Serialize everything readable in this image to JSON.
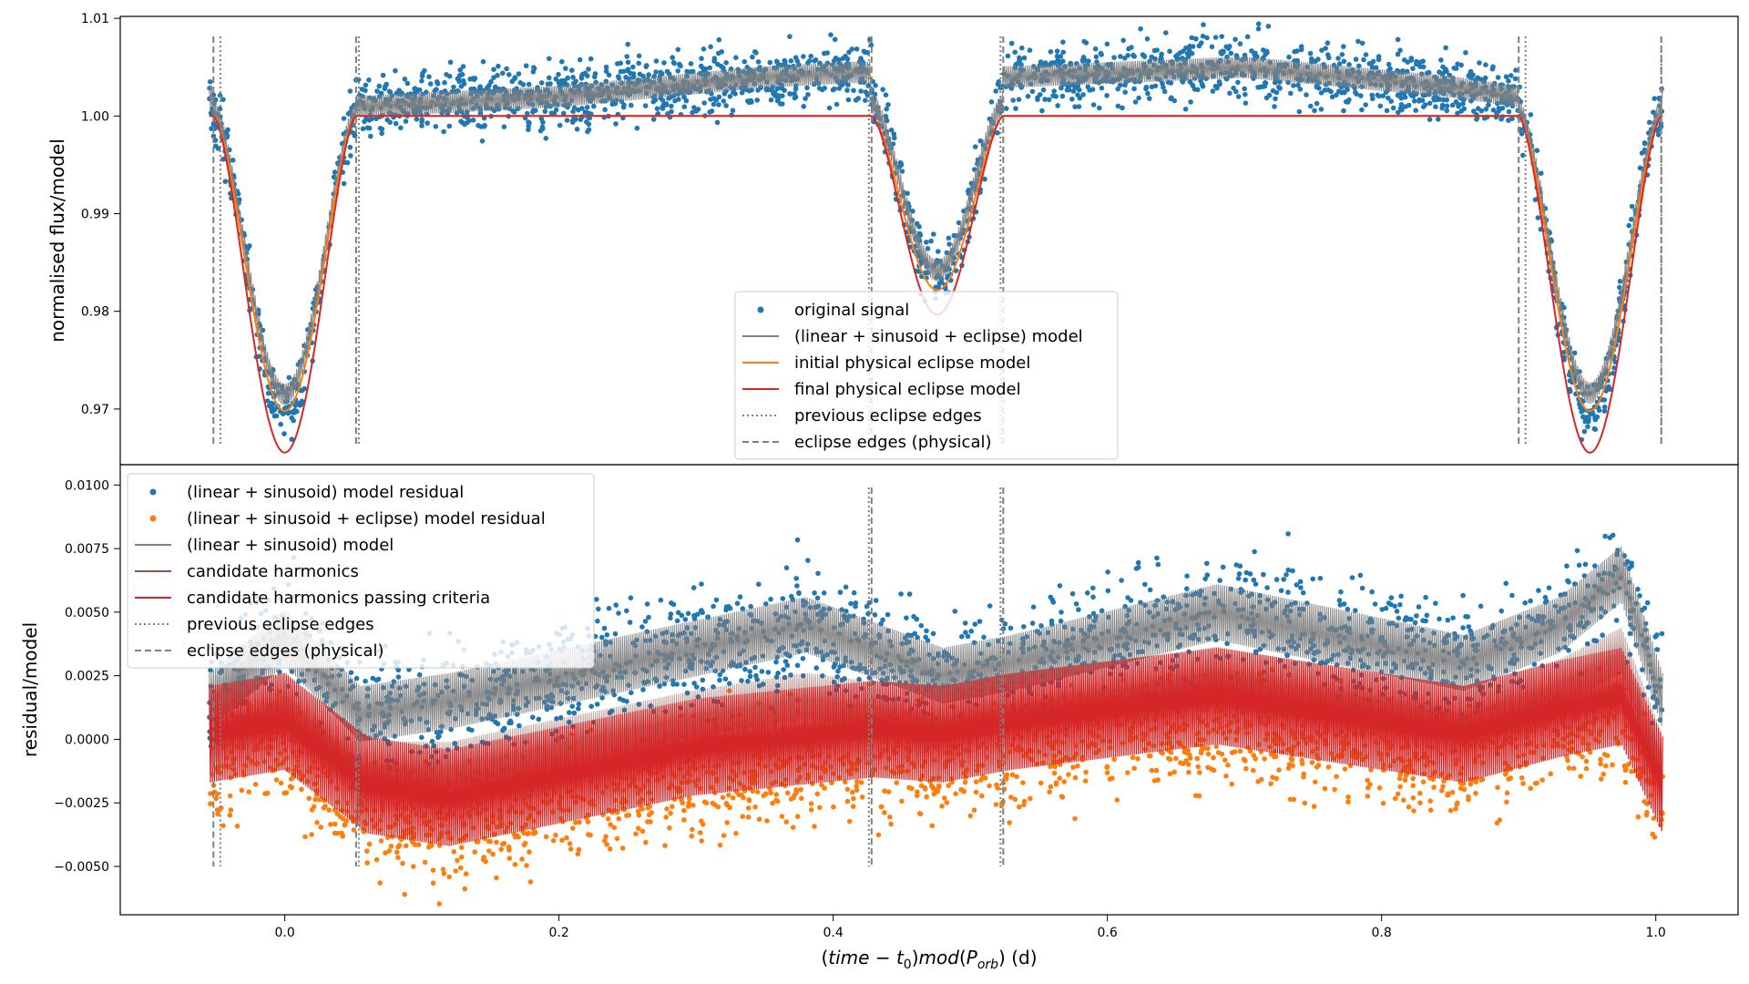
{
  "chart_data": [
    {
      "type": "scatter",
      "panel": "top",
      "xlim": [
        -0.12,
        1.06
      ],
      "ylim": [
        0.9643,
        1.0102
      ],
      "xlabel": "",
      "ylabel": "normalised flux/model",
      "yticks": [
        0.97,
        0.98,
        0.99,
        1.0,
        1.01
      ],
      "ytick_labels": [
        "0.97",
        "0.98",
        "0.99",
        "1.00",
        "1.01"
      ],
      "grid": false,
      "legend_position": "lower-center",
      "eclipses": [
        {
          "center": 0.0,
          "depth": 0.0305,
          "edges_physical": [
            -0.052,
            0.052
          ],
          "edges_previous": [
            -0.047,
            0.054
          ]
        },
        {
          "center": 0.476,
          "depth": 0.018,
          "edges_physical": [
            0.428,
            0.524
          ],
          "edges_previous": [
            0.426,
            0.522
          ]
        },
        {
          "center": 0.952,
          "depth": 0.0305,
          "edges_physical": [
            0.9,
            1.004
          ],
          "edges_previous": [
            0.905,
            1.004
          ]
        }
      ],
      "phase_range": [
        -0.055,
        1.005
      ],
      "out_of_eclipse_flux": [
        {
          "x": -0.055,
          "y": 1.002
        },
        {
          "x": 0.06,
          "y": 1.001
        },
        {
          "x": 0.2,
          "y": 1.002
        },
        {
          "x": 0.35,
          "y": 1.004
        },
        {
          "x": 0.42,
          "y": 1.0045
        },
        {
          "x": 0.53,
          "y": 1.004
        },
        {
          "x": 0.7,
          "y": 1.005
        },
        {
          "x": 0.85,
          "y": 1.003
        },
        {
          "x": 0.9,
          "y": 1.002
        }
      ],
      "series": [
        {
          "name": "original signal",
          "kind": "scatter",
          "color": "#1f77b4"
        },
        {
          "name": "(linear + sinusoid + eclipse) model",
          "kind": "line",
          "color": "#808080"
        },
        {
          "name": "initial physical eclipse model",
          "kind": "line",
          "color": "#ff7f0e",
          "min": 0.9698
        },
        {
          "name": "final physical eclipse model",
          "kind": "line",
          "color": "#d62728",
          "min": 0.9655
        },
        {
          "name": "previous eclipse edges",
          "kind": "vline-dotted",
          "color": "#808080"
        },
        {
          "name": "eclipse edges (physical)",
          "kind": "vline-dashed",
          "color": "#808080"
        }
      ]
    },
    {
      "type": "scatter",
      "panel": "bottom",
      "xlim": [
        -0.12,
        1.06
      ],
      "ylim": [
        -0.0069,
        0.0108
      ],
      "xlabel": "(time - t0) mod (Porb) (d)",
      "ylabel": "residual/model",
      "xticks": [
        0.0,
        0.2,
        0.4,
        0.6,
        0.8,
        1.0
      ],
      "xtick_labels": [
        "0.0",
        "0.2",
        "0.4",
        "0.6",
        "0.8",
        "1.0"
      ],
      "yticks": [
        -0.005,
        -0.0025,
        0.0,
        0.0025,
        0.005,
        0.0075,
        0.01
      ],
      "ytick_labels": [
        "−0.0050",
        "−0.0025",
        "0.0000",
        "0.0025",
        "0.0050",
        "0.0075",
        "0.0100"
      ],
      "grid": false,
      "legend_position": "upper-left",
      "trend_linear_sinusoid_residual": [
        {
          "x": -0.055,
          "y": 0.0015
        },
        {
          "x": 0.0,
          "y": 0.004
        },
        {
          "x": 0.055,
          "y": 0.001
        },
        {
          "x": 0.12,
          "y": 0.0015
        },
        {
          "x": 0.25,
          "y": 0.003
        },
        {
          "x": 0.38,
          "y": 0.0045
        },
        {
          "x": 0.43,
          "y": 0.0035
        },
        {
          "x": 0.48,
          "y": 0.0025
        },
        {
          "x": 0.53,
          "y": 0.003
        },
        {
          "x": 0.68,
          "y": 0.005
        },
        {
          "x": 0.86,
          "y": 0.003
        },
        {
          "x": 0.93,
          "y": 0.0045
        },
        {
          "x": 0.975,
          "y": 0.0065
        },
        {
          "x": 1.005,
          "y": 0.0015
        }
      ],
      "trend_eclipse_residual": [
        {
          "x": -0.055,
          "y": -0.001
        },
        {
          "x": 0.0,
          "y": -0.0005
        },
        {
          "x": 0.06,
          "y": -0.003
        },
        {
          "x": 0.12,
          "y": -0.0035
        },
        {
          "x": 0.3,
          "y": -0.0015
        },
        {
          "x": 0.43,
          "y": -0.0008
        },
        {
          "x": 0.48,
          "y": -0.001
        },
        {
          "x": 0.53,
          "y": -0.0005
        },
        {
          "x": 0.68,
          "y": 0.0005
        },
        {
          "x": 0.86,
          "y": -0.001
        },
        {
          "x": 0.93,
          "y": 0.0
        },
        {
          "x": 0.975,
          "y": 0.0005
        },
        {
          "x": 1.005,
          "y": -0.003
        }
      ],
      "series": [
        {
          "name": "(linear + sinusoid) model residual",
          "kind": "scatter",
          "color": "#1f77b4"
        },
        {
          "name": "(linear + sinusoid + eclipse) model residual",
          "kind": "scatter",
          "color": "#ff7f0e"
        },
        {
          "name": "(linear + sinusoid) model",
          "kind": "line",
          "color": "#808080"
        },
        {
          "name": "candidate harmonics",
          "kind": "line",
          "color": "#8c564b"
        },
        {
          "name": "candidate harmonics passing criteria",
          "kind": "line",
          "color": "#d62728"
        },
        {
          "name": "previous eclipse edges",
          "kind": "vline-dotted",
          "color": "#808080"
        },
        {
          "name": "eclipse edges (physical)",
          "kind": "vline-dashed",
          "color": "#808080"
        }
      ]
    }
  ]
}
